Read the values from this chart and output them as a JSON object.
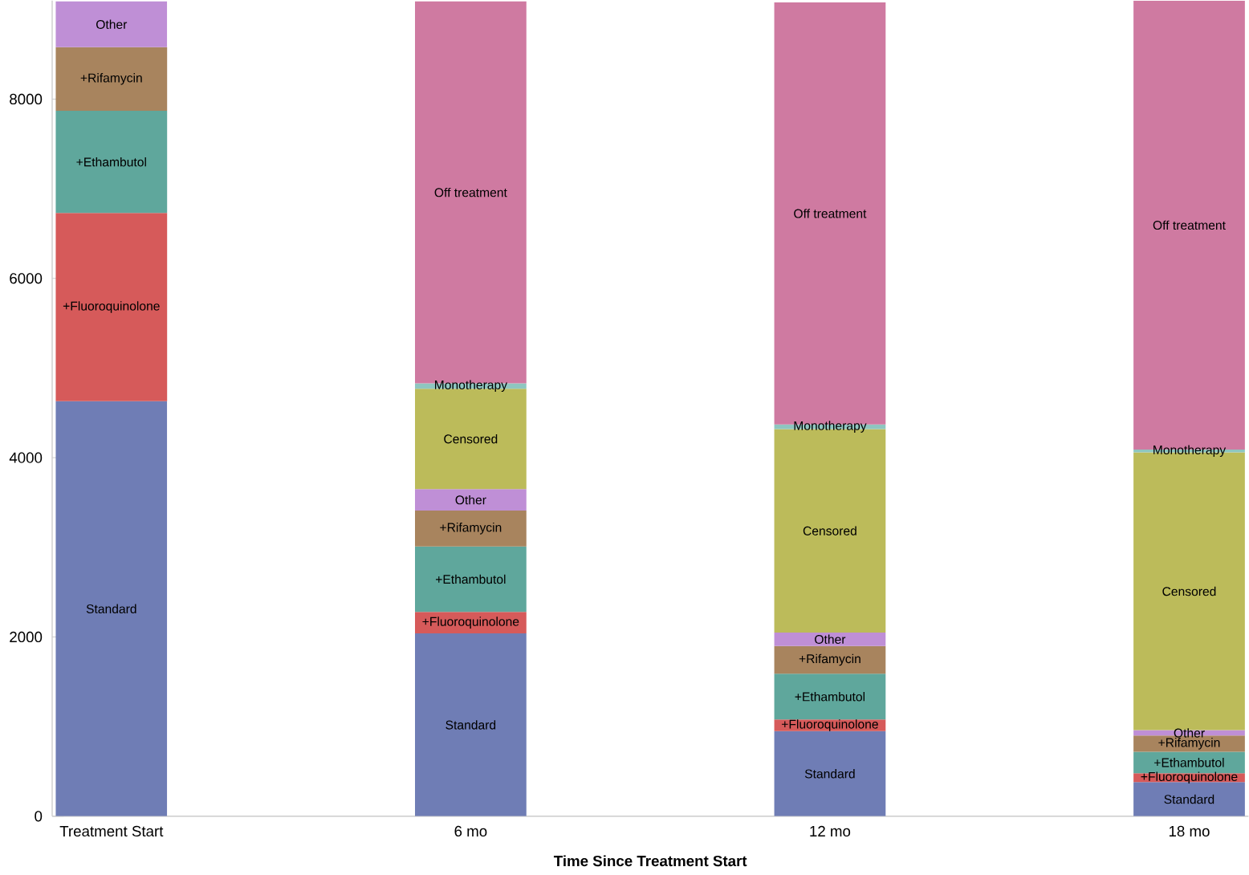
{
  "chart_data": {
    "type": "bar",
    "stacked": true,
    "xlabel": "Time Since Treatment Start",
    "categories": [
      "Treatment Start",
      "6 mo",
      "12 mo",
      "18 mo"
    ],
    "ylim": [
      0,
      9100
    ],
    "yticks": [
      0,
      2000,
      4000,
      6000,
      8000
    ],
    "series": [
      {
        "name": "Standard",
        "color": "#6f7db5",
        "values": [
          4630,
          2040,
          950,
          380
        ]
      },
      {
        "name": "+Fluoroquinolone",
        "color": "#d65a5a",
        "values": [
          2100,
          240,
          130,
          100
        ]
      },
      {
        "name": "+Ethambutol",
        "color": "#5fa79c",
        "values": [
          1140,
          730,
          510,
          240
        ]
      },
      {
        "name": "+Rifamycin",
        "color": "#a8845e",
        "values": [
          710,
          400,
          310,
          180
        ]
      },
      {
        "name": "Other",
        "color": "#bf8fd6",
        "values": [
          510,
          240,
          150,
          60
        ]
      },
      {
        "name": "Censored",
        "color": "#bcbb5a",
        "values": [
          null,
          1120,
          2270,
          3100
        ]
      },
      {
        "name": "Monotherapy",
        "color": "#8fc6c0",
        "values": [
          null,
          60,
          50,
          30
        ]
      },
      {
        "name": "Off treatment",
        "color": "#cf7aa1",
        "values": [
          null,
          4260,
          4710,
          5010
        ]
      }
    ]
  }
}
